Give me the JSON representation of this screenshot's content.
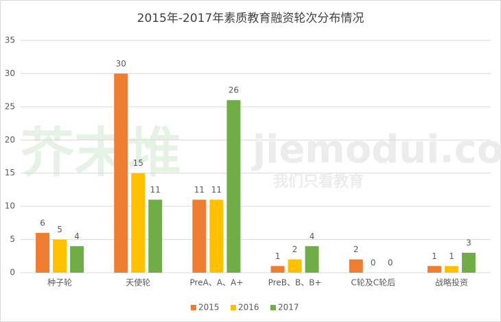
{
  "chart_data": {
    "type": "bar",
    "title": "2015年-2017年素质教育融资轮次分布情况",
    "categories": [
      "种子轮",
      "天使轮",
      "PreA、A、A+",
      "PreB、B、B+",
      "C轮及C轮后",
      "战略投资"
    ],
    "series": [
      {
        "name": "2015",
        "color": "#ed7d31",
        "values": [
          6,
          30,
          11,
          1,
          2,
          1
        ]
      },
      {
        "name": "2016",
        "color": "#ffc000",
        "values": [
          5,
          15,
          11,
          2,
          0,
          1
        ]
      },
      {
        "name": "2017",
        "color": "#70ad47",
        "values": [
          4,
          11,
          26,
          4,
          0,
          3
        ]
      }
    ],
    "ylim": [
      0,
      35
    ],
    "yticks": [
      0,
      5,
      10,
      15,
      20,
      25,
      30,
      35
    ],
    "grid": true,
    "legend": "bottom",
    "watermark": [
      "芥末堆",
      "jiemodui.com",
      "我们只看教育"
    ]
  }
}
